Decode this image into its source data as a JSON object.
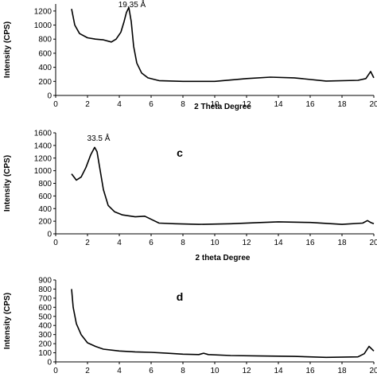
{
  "chart_data": [
    {
      "type": "line",
      "panel_label": "",
      "xlabel": "2 Theta Degree",
      "ylabel": "Intensity (CPS)",
      "xlim": [
        0,
        20
      ],
      "ylim": [
        0,
        1300
      ],
      "xticks": [
        0,
        2,
        4,
        6,
        8,
        10,
        12,
        14,
        16,
        18,
        20
      ],
      "yticks": [
        0,
        200,
        400,
        600,
        800,
        1000,
        1200
      ],
      "annotation": {
        "text": "19.35 Å",
        "x": 4.6,
        "y": 1250
      },
      "series": [
        {
          "x": [
            1.0,
            1.2,
            1.5,
            2.0,
            2.5,
            3.0,
            3.5,
            3.8,
            4.1,
            4.3,
            4.45,
            4.6,
            4.75,
            4.9,
            5.1,
            5.4,
            5.8,
            6.5,
            8,
            10,
            12,
            13.5,
            15,
            17,
            19,
            19.5,
            19.8,
            20.0
          ],
          "y": [
            1230,
            1000,
            880,
            820,
            800,
            790,
            760,
            800,
            900,
            1050,
            1180,
            1250,
            1050,
            700,
            460,
            320,
            250,
            210,
            200,
            200,
            240,
            260,
            250,
            205,
            215,
            240,
            340,
            250
          ]
        }
      ]
    },
    {
      "type": "line",
      "panel_label": "c",
      "xlabel": "2 theta Degree",
      "ylabel": "Intensity (CPS)",
      "xlim": [
        0,
        20
      ],
      "ylim": [
        0,
        1600
      ],
      "xticks": [
        0,
        2,
        4,
        6,
        8,
        10,
        12,
        14,
        16,
        18,
        20
      ],
      "yticks": [
        0,
        200,
        400,
        600,
        800,
        1000,
        1200,
        1400,
        1600
      ],
      "annotation": {
        "text": "33.5 Å",
        "x": 2.5,
        "y": 1400
      },
      "series": [
        {
          "x": [
            1.0,
            1.3,
            1.6,
            1.9,
            2.2,
            2.45,
            2.6,
            2.8,
            3.0,
            3.3,
            3.7,
            4.2,
            5.0,
            5.6,
            6.0,
            6.5,
            7.5,
            9,
            11,
            13,
            14,
            16,
            18,
            19.3,
            19.6,
            19.8,
            20.0
          ],
          "y": [
            950,
            850,
            900,
            1050,
            1250,
            1370,
            1300,
            1000,
            700,
            450,
            350,
            300,
            270,
            280,
            230,
            170,
            160,
            150,
            160,
            180,
            190,
            180,
            150,
            170,
            210,
            180,
            160
          ]
        }
      ]
    },
    {
      "type": "line",
      "panel_label": "d",
      "xlabel": "",
      "ylabel": "Intensity (CPS)",
      "xlim": [
        0,
        20
      ],
      "ylim": [
        0,
        900
      ],
      "xticks": [
        0,
        2,
        4,
        6,
        8,
        10,
        12,
        14,
        16,
        18,
        20
      ],
      "yticks": [
        0,
        100,
        200,
        300,
        400,
        500,
        600,
        700,
        800,
        900
      ],
      "series": [
        {
          "x": [
            1.0,
            1.1,
            1.3,
            1.6,
            2.0,
            2.5,
            3.0,
            4,
            5,
            6,
            7,
            8,
            9,
            9.3,
            9.6,
            11,
            13,
            15,
            17,
            19,
            19.4,
            19.7,
            20.0
          ],
          "y": [
            800,
            600,
            420,
            300,
            210,
            170,
            140,
            120,
            110,
            105,
            95,
            85,
            80,
            95,
            80,
            70,
            65,
            60,
            50,
            55,
            90,
            170,
            120
          ]
        }
      ]
    }
  ],
  "colors": {
    "line": "#000000",
    "axis": "#000000"
  }
}
